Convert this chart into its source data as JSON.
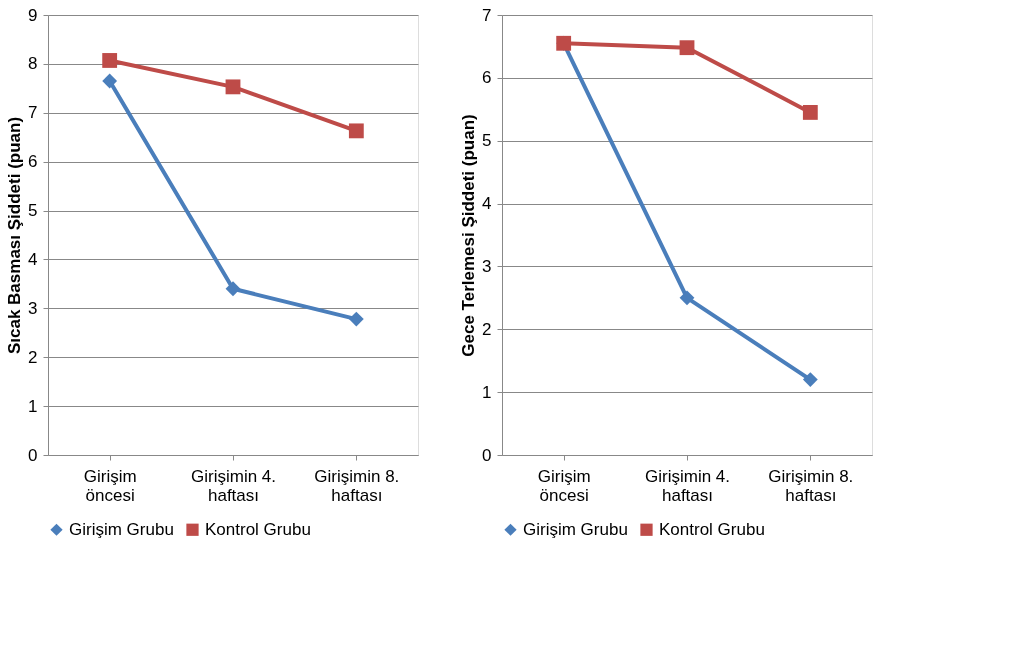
{
  "chart_data": [
    {
      "type": "line",
      "ylabel": "Sıcak Basması Şiddeti  (puan)",
      "categories": [
        "Girişim öncesi",
        "Girişimin 4. haftası",
        "Girişimin 8. haftası"
      ],
      "ylim": [
        0,
        9
      ],
      "yticks": [
        0,
        1,
        2,
        3,
        4,
        5,
        6,
        7,
        8,
        9
      ],
      "grid": "y",
      "legend": "bottom",
      "line_style": "solid",
      "series": [
        {
          "name": "Girişim Grubu",
          "color": "#4a7ebb",
          "marker": "diamond",
          "values": [
            7.65,
            3.4,
            2.78
          ]
        },
        {
          "name": "Kontrol Grubu",
          "color": "#be4b48",
          "marker": "square",
          "values": [
            8.07,
            7.53,
            6.63
          ]
        }
      ]
    },
    {
      "type": "line",
      "ylabel": "Gece Terlemesi Şiddeti (puan)",
      "categories": [
        "Girişim öncesi",
        "Girişimin 4. haftası",
        "Girişimin 8. haftası"
      ],
      "ylim": [
        0,
        7
      ],
      "yticks": [
        0,
        1,
        2,
        3,
        4,
        5,
        6,
        7
      ],
      "grid": "y",
      "legend": "bottom",
      "line_style": "solid",
      "series": [
        {
          "name": "Girişim Grubu",
          "color": "#4a7ebb",
          "marker": "diamond",
          "values": [
            6.55,
            2.5,
            1.2
          ]
        },
        {
          "name": "Kontrol Grubu",
          "color": "#be4b48",
          "marker": "square",
          "values": [
            6.55,
            6.48,
            5.45
          ]
        }
      ]
    }
  ]
}
